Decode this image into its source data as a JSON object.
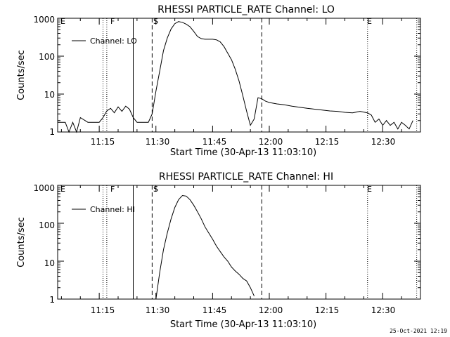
{
  "footer_timestamp": "25-Oct-2021 12:19",
  "chart_data": [
    {
      "type": "line",
      "title": "RHESSI PARTICLE_RATE Channel: LO",
      "xlabel": "Start Time (30-Apr-13 11:03:10)",
      "ylabel": "Counts/sec",
      "y_scale": "log",
      "ylim": [
        1,
        1000
      ],
      "xlim": [
        "11:04",
        "12:40"
      ],
      "x_ticks": [
        "11:15",
        "11:30",
        "11:45",
        "12:00",
        "12:15",
        "12:30"
      ],
      "y_ticks": [
        "1",
        "10",
        "100",
        "1000"
      ],
      "legend_label": "Channel: LO",
      "legend_position": "top-left",
      "markers": [
        {
          "label": "F",
          "time": "11:17",
          "style": "dotted"
        },
        {
          "label": "S",
          "time": "11:29",
          "style": "dashed"
        },
        {
          "label": "E",
          "time": "12:26",
          "style": "dotted"
        }
      ],
      "vertical_lines": [
        {
          "time": "11:16",
          "style": "dotted"
        },
        {
          "time": "11:24",
          "style": "solid"
        },
        {
          "time": "11:58",
          "style": "dashed"
        },
        {
          "time": "12:39",
          "style": "dotted"
        }
      ],
      "series": [
        {
          "name": "Channel: LO",
          "x": [
            "11:04",
            "11:06",
            "11:07",
            "11:08",
            "11:09",
            "11:10",
            "11:12",
            "11:13",
            "11:14",
            "11:15",
            "11:16",
            "11:17",
            "11:18",
            "11:19",
            "11:20",
            "11:21",
            "11:22",
            "11:23",
            "11:24",
            "11:25",
            "11:26",
            "11:27",
            "11:28",
            "11:29",
            "11:30",
            "11:31",
            "11:32",
            "11:33",
            "11:34",
            "11:35",
            "11:36",
            "11:37",
            "11:38",
            "11:39",
            "11:40",
            "11:41",
            "11:42",
            "11:43",
            "11:44",
            "11:45",
            "11:46",
            "11:47",
            "11:48",
            "11:49",
            "11:50",
            "11:51",
            "11:52",
            "11:53",
            "11:54",
            "11:55",
            "11:56",
            "11:57",
            "11:58",
            "11:59",
            "12:00",
            "12:02",
            "12:04",
            "12:06",
            "12:08",
            "12:10",
            "12:12",
            "12:14",
            "12:16",
            "12:18",
            "12:20",
            "12:22",
            "12:24",
            "12:26",
            "12:27",
            "12:28",
            "12:29",
            "12:30",
            "12:31",
            "12:32",
            "12:33",
            "12:34",
            "12:35",
            "12:36",
            "12:37",
            "12:38"
          ],
          "y": [
            1.8,
            1.8,
            1,
            1.8,
            1,
            2.4,
            1.8,
            1.8,
            1.8,
            1.8,
            2.4,
            3.6,
            4.2,
            3.2,
            4.6,
            3.5,
            4.8,
            4.0,
            2.4,
            1.8,
            1.8,
            1.8,
            1.8,
            3.0,
            12,
            40,
            140,
            300,
            520,
            720,
            820,
            780,
            700,
            600,
            450,
            330,
            290,
            280,
            280,
            280,
            270,
            240,
            180,
            120,
            80,
            45,
            22,
            9,
            3.5,
            1.5,
            2.2,
            8.0,
            7.5,
            6.5,
            6.0,
            5.5,
            5.2,
            4.8,
            4.5,
            4.2,
            4.0,
            3.8,
            3.6,
            3.5,
            3.3,
            3.2,
            3.5,
            3.2,
            2.8,
            1.8,
            2.2,
            1.5,
            2.0,
            1.5,
            1.8,
            1.2,
            1.8,
            1.5,
            1.2,
            2.0
          ]
        }
      ]
    },
    {
      "type": "line",
      "title": "RHESSI PARTICLE_RATE Channel: HI",
      "xlabel": "Start Time (30-Apr-13 11:03:10)",
      "ylabel": "Counts/sec",
      "y_scale": "log",
      "ylim": [
        1,
        1000
      ],
      "xlim": [
        "11:04",
        "12:40"
      ],
      "x_ticks": [
        "11:15",
        "11:30",
        "11:45",
        "12:00",
        "12:15",
        "12:30"
      ],
      "y_ticks": [
        "1",
        "10",
        "100",
        "1000"
      ],
      "legend_label": "Channel: HI",
      "legend_position": "top-left",
      "markers": [
        {
          "label": "F",
          "time": "11:17",
          "style": "dotted"
        },
        {
          "label": "S",
          "time": "11:29",
          "style": "dashed"
        },
        {
          "label": "E",
          "time": "12:26",
          "style": "dotted"
        }
      ],
      "vertical_lines": [
        {
          "time": "11:16",
          "style": "dotted"
        },
        {
          "time": "11:24",
          "style": "solid"
        },
        {
          "time": "11:58",
          "style": "dashed"
        },
        {
          "time": "12:39",
          "style": "dotted"
        }
      ],
      "series": [
        {
          "name": "Channel: HI",
          "x": [
            "11:30",
            "11:31",
            "11:32",
            "11:33",
            "11:34",
            "11:35",
            "11:36",
            "11:37",
            "11:38",
            "11:39",
            "11:40",
            "11:41",
            "11:42",
            "11:43",
            "11:44",
            "11:45",
            "11:46",
            "11:47",
            "11:48",
            "11:49",
            "11:50",
            "11:51",
            "11:52",
            "11:53",
            "11:54",
            "11:55",
            "11:56"
          ],
          "y": [
            1,
            5,
            20,
            55,
            130,
            260,
            420,
            540,
            520,
            420,
            300,
            200,
            130,
            80,
            55,
            38,
            25,
            18,
            13,
            10,
            7,
            5.5,
            4.5,
            3.5,
            3.0,
            2.0,
            1.2
          ]
        }
      ]
    }
  ]
}
